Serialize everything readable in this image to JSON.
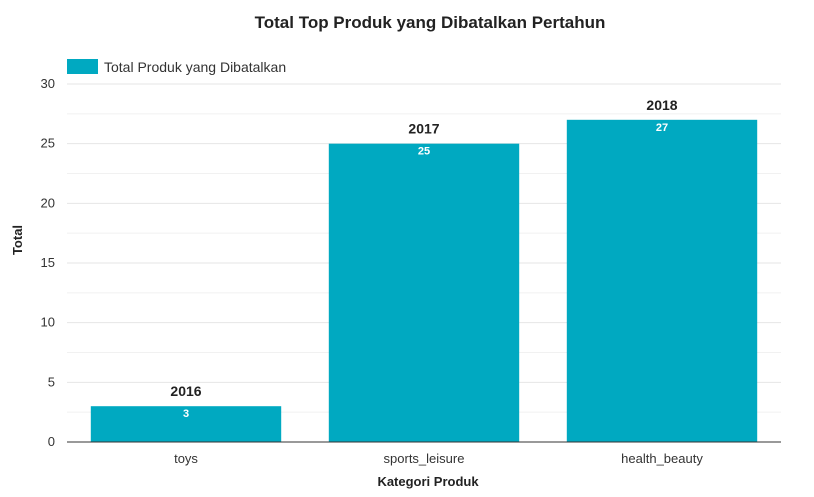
{
  "chart_data": {
    "type": "bar",
    "title": "Total Top Produk yang Dibatalkan Pertahun",
    "xlabel": "Kategori Produk",
    "ylabel": "Total",
    "categories": [
      "toys",
      "sports_leisure",
      "health_beauty"
    ],
    "series": [
      {
        "name": "Total Produk yang Dibatalkan",
        "values": [
          3,
          25,
          27
        ]
      }
    ],
    "annotations": [
      "2016",
      "2017",
      "2018"
    ],
    "ylim": [
      0,
      30
    ],
    "yticks": [
      0,
      5,
      10,
      15,
      20,
      25,
      30
    ],
    "grid": true,
    "legend": "top-left",
    "colors": {
      "bar": "#00a9c1"
    }
  }
}
